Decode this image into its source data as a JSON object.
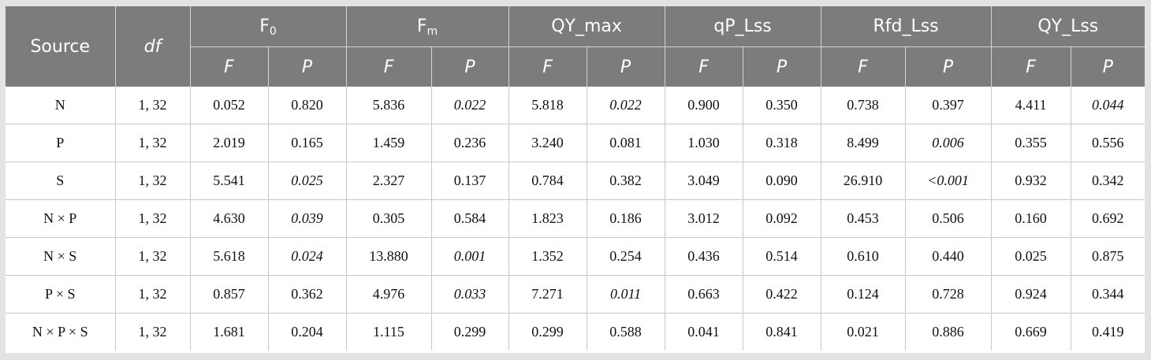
{
  "header": {
    "source": "Source",
    "df": "df",
    "groups": [
      {
        "main": "F",
        "sub": "0"
      },
      {
        "main": "F",
        "sub": "m"
      },
      {
        "main": "QY_max",
        "sub": ""
      },
      {
        "main": "qP_Lss",
        "sub": ""
      },
      {
        "main": "Rfd_Lss",
        "sub": ""
      },
      {
        "main": "QY_Lss",
        "sub": ""
      }
    ],
    "stat_f": "F",
    "stat_p": "P"
  },
  "rows": [
    {
      "source": "N",
      "df": "1, 32",
      "values": [
        "0.052",
        "0.820",
        "5.836",
        "0.022",
        "5.818",
        "0.022",
        "0.900",
        "0.350",
        "0.738",
        "0.397",
        "4.411",
        "0.044"
      ],
      "italic": [
        false,
        false,
        false,
        true,
        false,
        true,
        false,
        false,
        false,
        false,
        false,
        true
      ]
    },
    {
      "source": "P",
      "df": "1, 32",
      "values": [
        "2.019",
        "0.165",
        "1.459",
        "0.236",
        "3.240",
        "0.081",
        "1.030",
        "0.318",
        "8.499",
        "0.006",
        "0.355",
        "0.556"
      ],
      "italic": [
        false,
        false,
        false,
        false,
        false,
        false,
        false,
        false,
        false,
        true,
        false,
        false
      ]
    },
    {
      "source": "S",
      "df": "1, 32",
      "values": [
        "5.541",
        "0.025",
        "2.327",
        "0.137",
        "0.784",
        "0.382",
        "3.049",
        "0.090",
        "26.910",
        "<0.001",
        "0.932",
        "0.342"
      ],
      "italic": [
        false,
        true,
        false,
        false,
        false,
        false,
        false,
        false,
        false,
        true,
        false,
        false
      ]
    },
    {
      "source": "N × P",
      "df": "1, 32",
      "values": [
        "4.630",
        "0.039",
        "0.305",
        "0.584",
        "1.823",
        "0.186",
        "3.012",
        "0.092",
        "0.453",
        "0.506",
        "0.160",
        "0.692"
      ],
      "italic": [
        false,
        true,
        false,
        false,
        false,
        false,
        false,
        false,
        false,
        false,
        false,
        false
      ]
    },
    {
      "source": "N × S",
      "df": "1, 32",
      "values": [
        "5.618",
        "0.024",
        "13.880",
        "0.001",
        "1.352",
        "0.254",
        "0.436",
        "0.514",
        "0.610",
        "0.440",
        "0.025",
        "0.875"
      ],
      "italic": [
        false,
        true,
        false,
        true,
        false,
        false,
        false,
        false,
        false,
        false,
        false,
        false
      ]
    },
    {
      "source": "P × S",
      "df": "1, 32",
      "values": [
        "0.857",
        "0.362",
        "4.976",
        "0.033",
        "7.271",
        "0.011",
        "0.663",
        "0.422",
        "0.124",
        "0.728",
        "0.924",
        "0.344"
      ],
      "italic": [
        false,
        false,
        false,
        true,
        false,
        true,
        false,
        false,
        false,
        false,
        false,
        false
      ]
    },
    {
      "source": "N × P × S",
      "df": "1, 32",
      "values": [
        "1.681",
        "0.204",
        "1.115",
        "0.299",
        "0.299",
        "0.588",
        "0.041",
        "0.841",
        "0.021",
        "0.886",
        "0.669",
        "0.419"
      ],
      "italic": [
        false,
        false,
        false,
        false,
        false,
        false,
        false,
        false,
        false,
        false,
        false,
        false
      ]
    }
  ]
}
